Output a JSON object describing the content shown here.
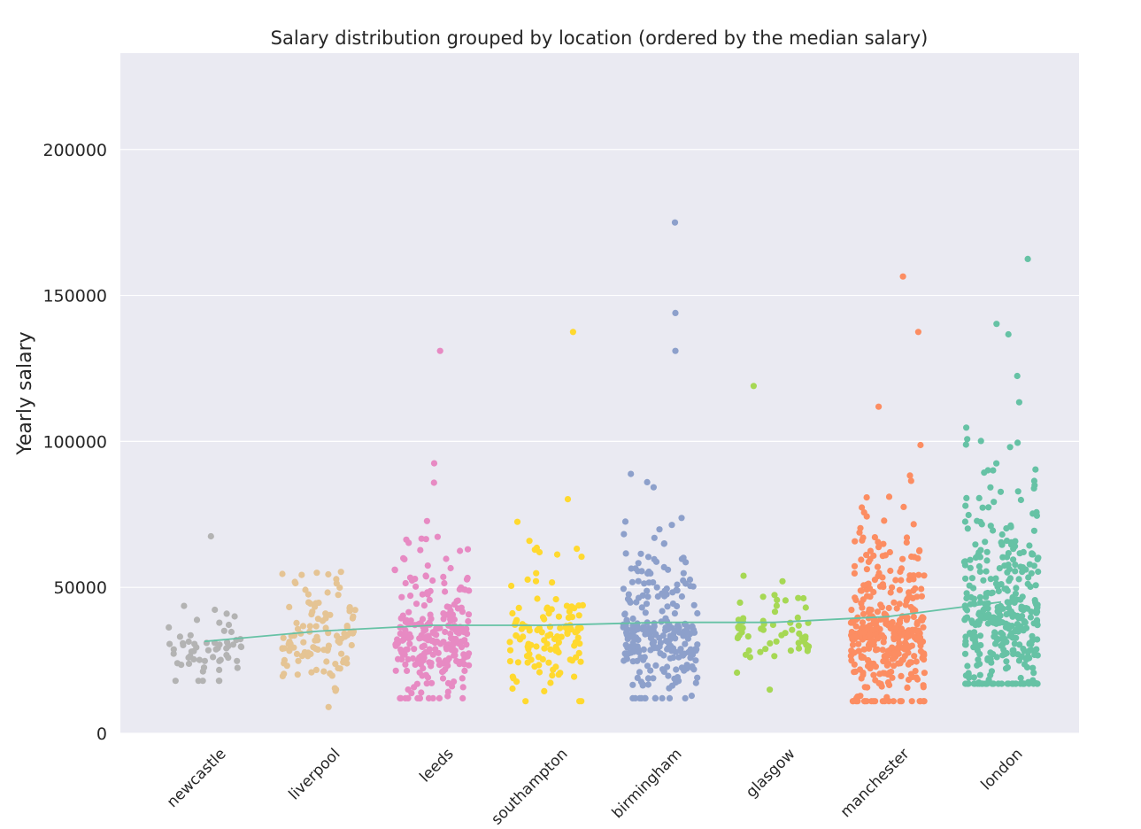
{
  "chart_data": {
    "type": "scatter",
    "title": "Salary distribution grouped by location (ordered by the median salary)",
    "xlabel": "",
    "ylabel": "Yearly salary",
    "ylim": [
      0,
      233000
    ],
    "yticks": [
      "0",
      "50000",
      "100000",
      "150000",
      "200000"
    ],
    "grid": true,
    "median_line_color": "#66c2a5",
    "plot_background": "#eaeaf2",
    "categories": [
      "newcastle",
      "liverpool",
      "leeds",
      "southampton",
      "birmingham",
      "glasgow",
      "manchester",
      "london"
    ],
    "medians": [
      31500,
      35000,
      37000,
      37000,
      38000,
      38000,
      40000,
      45000
    ],
    "series": [
      {
        "color": "#b3b3b3",
        "count": 60,
        "low": 18000,
        "high": 70000,
        "outliers": []
      },
      {
        "color": "#e5c494",
        "count": 110,
        "low": 9000,
        "high": 71000,
        "outliers": []
      },
      {
        "color": "#e78ac3",
        "count": 260,
        "low": 12000,
        "high": 100000,
        "outliers": [
          131000
        ]
      },
      {
        "color": "#ffd92f",
        "count": 120,
        "low": 11000,
        "high": 90000,
        "outliers": [
          137500
        ]
      },
      {
        "color": "#8da0cb",
        "count": 260,
        "low": 12000,
        "high": 100000,
        "outliers": [
          144000,
          131000,
          175000
        ]
      },
      {
        "color": "#a6d854",
        "count": 60,
        "low": 10000,
        "high": 64000,
        "outliers": [
          119000
        ]
      },
      {
        "color": "#fc8d62",
        "count": 360,
        "low": 11000,
        "high": 125000,
        "outliers": [
          137500,
          156500
        ]
      },
      {
        "color": "#66c2a5",
        "count": 380,
        "low": 17000,
        "high": 150000,
        "outliers": [
          162500
        ]
      }
    ]
  }
}
